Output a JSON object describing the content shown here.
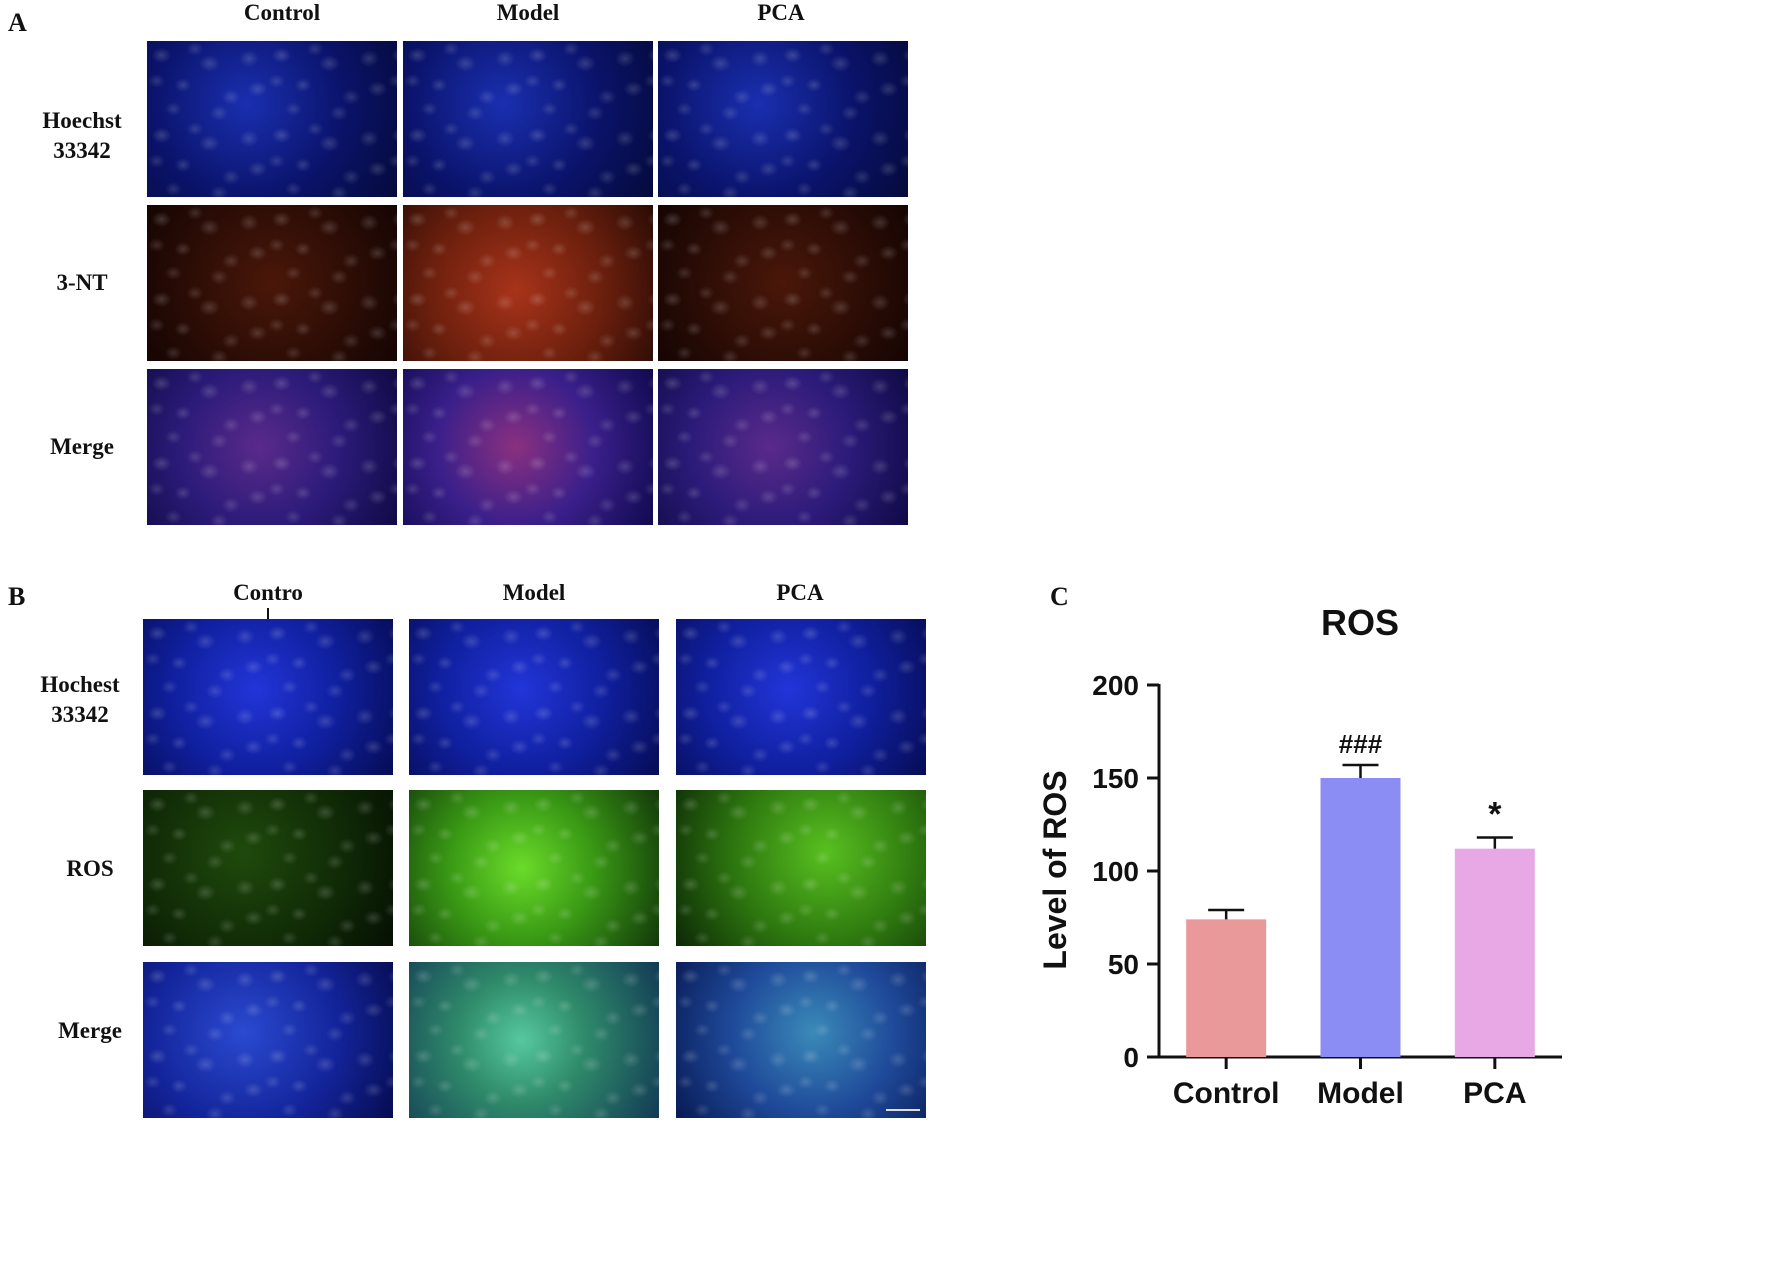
{
  "panel_a": {
    "letter": "A",
    "columns": [
      "Control",
      "Model",
      "PCA"
    ],
    "rows": [
      "Hoechst\n33342",
      "3-NT",
      "Merge"
    ]
  },
  "panel_b": {
    "letter": "B",
    "columns": [
      "Contro",
      "Model",
      "PCA"
    ],
    "rows": [
      "Hochest\n33342",
      "ROS",
      "Merge"
    ]
  },
  "panel_c": {
    "letter": "C"
  },
  "chart_data": {
    "type": "bar",
    "title": "ROS",
    "xlabel": "",
    "ylabel": "Level of ROS",
    "categories": [
      "Control",
      "Model",
      "PCA"
    ],
    "values": [
      74,
      150,
      112
    ],
    "errors": [
      5,
      7,
      6
    ],
    "annotations": [
      "",
      "###",
      "*"
    ],
    "bar_colors": [
      "#e9999a",
      "#8c8cf5",
      "#e8a8e6"
    ],
    "ylim": [
      0,
      200
    ],
    "yticks": [
      0,
      50,
      100,
      150,
      200
    ],
    "grid": false,
    "legend": "none"
  }
}
